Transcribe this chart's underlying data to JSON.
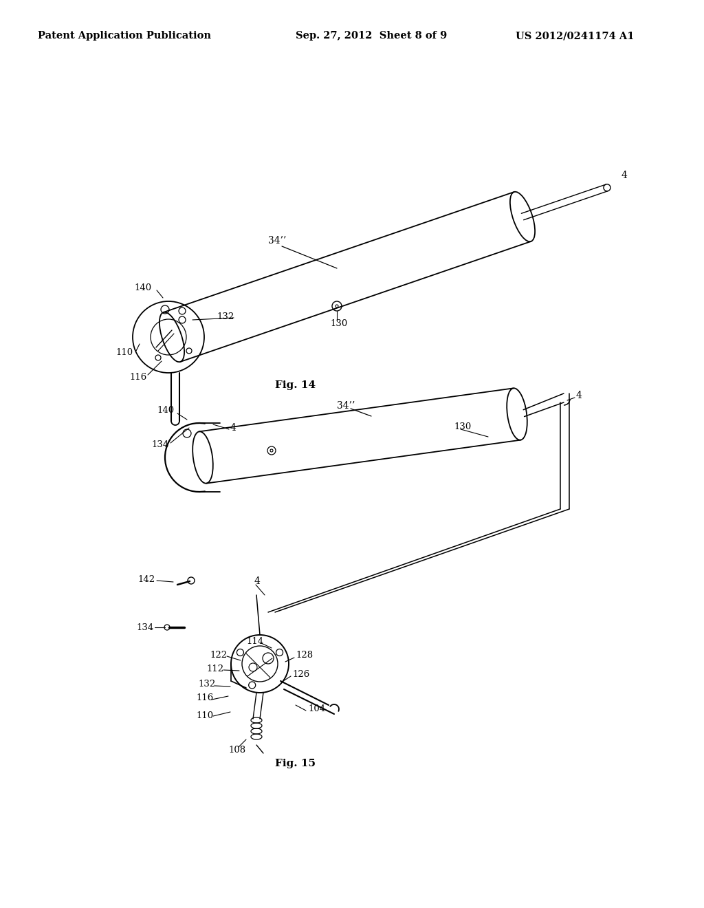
{
  "background_color": "#ffffff",
  "header_left": "Patent Application Publication",
  "header_center": "Sep. 27, 2012  Sheet 8 of 9",
  "header_right": "US 2012/0241174 A1",
  "fig14_caption": "Fig. 14",
  "fig15_caption": "Fig. 15",
  "line_color": "#000000",
  "text_color": "#000000",
  "font_size_header": 10.5,
  "font_size_label": 9.5,
  "font_size_caption": 11
}
